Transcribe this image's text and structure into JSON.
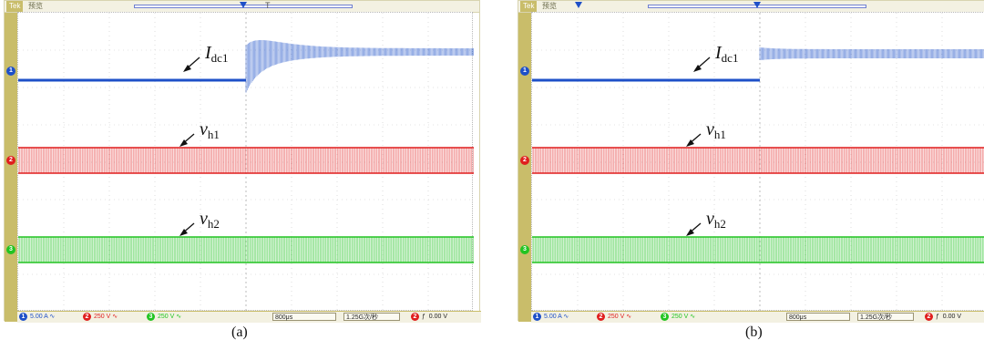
{
  "colors": {
    "ch1": "#1e50c8",
    "ch2": "#e01e1e",
    "ch3": "#22c422",
    "frame": "#c9bd6a"
  },
  "panels": [
    {
      "id": "a",
      "brand": "Tek",
      "status": "预览",
      "caption": "(a)",
      "annotations": {
        "idc1_base": "I",
        "idc1_sub": "dc1",
        "vh1_base": "v",
        "vh1_sub": "h1",
        "vh2_base": "v",
        "vh2_sub": "h2"
      },
      "channel_markers": [
        "1",
        "2",
        "3"
      ],
      "trigger_label": "T",
      "bottom": {
        "ch1_num": "1",
        "ch1_scale": "5.00 A",
        "ch1_cpl": "∿",
        "ch2_num": "2",
        "ch2_scale": "250 V",
        "ch2_cpl": "∿",
        "ch3_num": "3",
        "ch3_scale": "250 V",
        "ch3_cpl": "∿",
        "timebase": "800μs",
        "sample_rate": "1.25G次/秒",
        "trig_ch": "2",
        "trig_slope": "ƒ",
        "trig_level": "0.00 V"
      },
      "waveform": {
        "ch1_pre_level": 0.0,
        "ch1_post_level": 1.0,
        "ch1_transient": "decaying ringing",
        "trigger_fraction": 0.5
      }
    },
    {
      "id": "b",
      "brand": "Tek",
      "status": "预览",
      "caption": "(b)",
      "annotations": {
        "idc1_base": "I",
        "idc1_sub": "dc1",
        "vh1_base": "v",
        "vh1_sub": "h1",
        "vh2_base": "v",
        "vh2_sub": "h2"
      },
      "channel_markers": [
        "1",
        "2",
        "3"
      ],
      "trigger_label": "T",
      "bottom": {
        "ch1_num": "1",
        "ch1_scale": "5.00 A",
        "ch1_cpl": "∿",
        "ch2_num": "2",
        "ch2_scale": "250 V",
        "ch2_cpl": "∿",
        "ch3_num": "3",
        "ch3_scale": "250 V",
        "ch3_cpl": "∿",
        "timebase": "800μs",
        "sample_rate": "1.25G次/秒",
        "trig_ch": "2",
        "trig_slope": "ƒ",
        "trig_level": "0.00 V"
      },
      "waveform": {
        "ch1_pre_level": 0.0,
        "ch1_post_level": 1.0,
        "ch1_transient": "smooth step",
        "trigger_fraction": 0.5
      }
    }
  ]
}
